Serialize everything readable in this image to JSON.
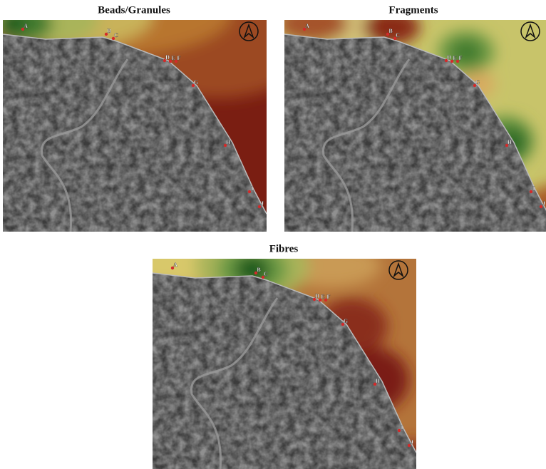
{
  "panels": [
    {
      "title": "Beads/Granules",
      "sites": [
        "A",
        "B",
        "C",
        "D",
        "E",
        "F",
        "G",
        "H",
        "I",
        "J"
      ]
    },
    {
      "title": "Fragments",
      "sites": [
        "A",
        "B",
        "C",
        "D",
        "E",
        "F",
        "G",
        "H",
        "I",
        "J"
      ]
    },
    {
      "title": "Fibres",
      "sites": [
        "A",
        "B",
        "C",
        "D",
        "E",
        "F",
        "G",
        "H",
        "I",
        "J"
      ]
    }
  ]
}
